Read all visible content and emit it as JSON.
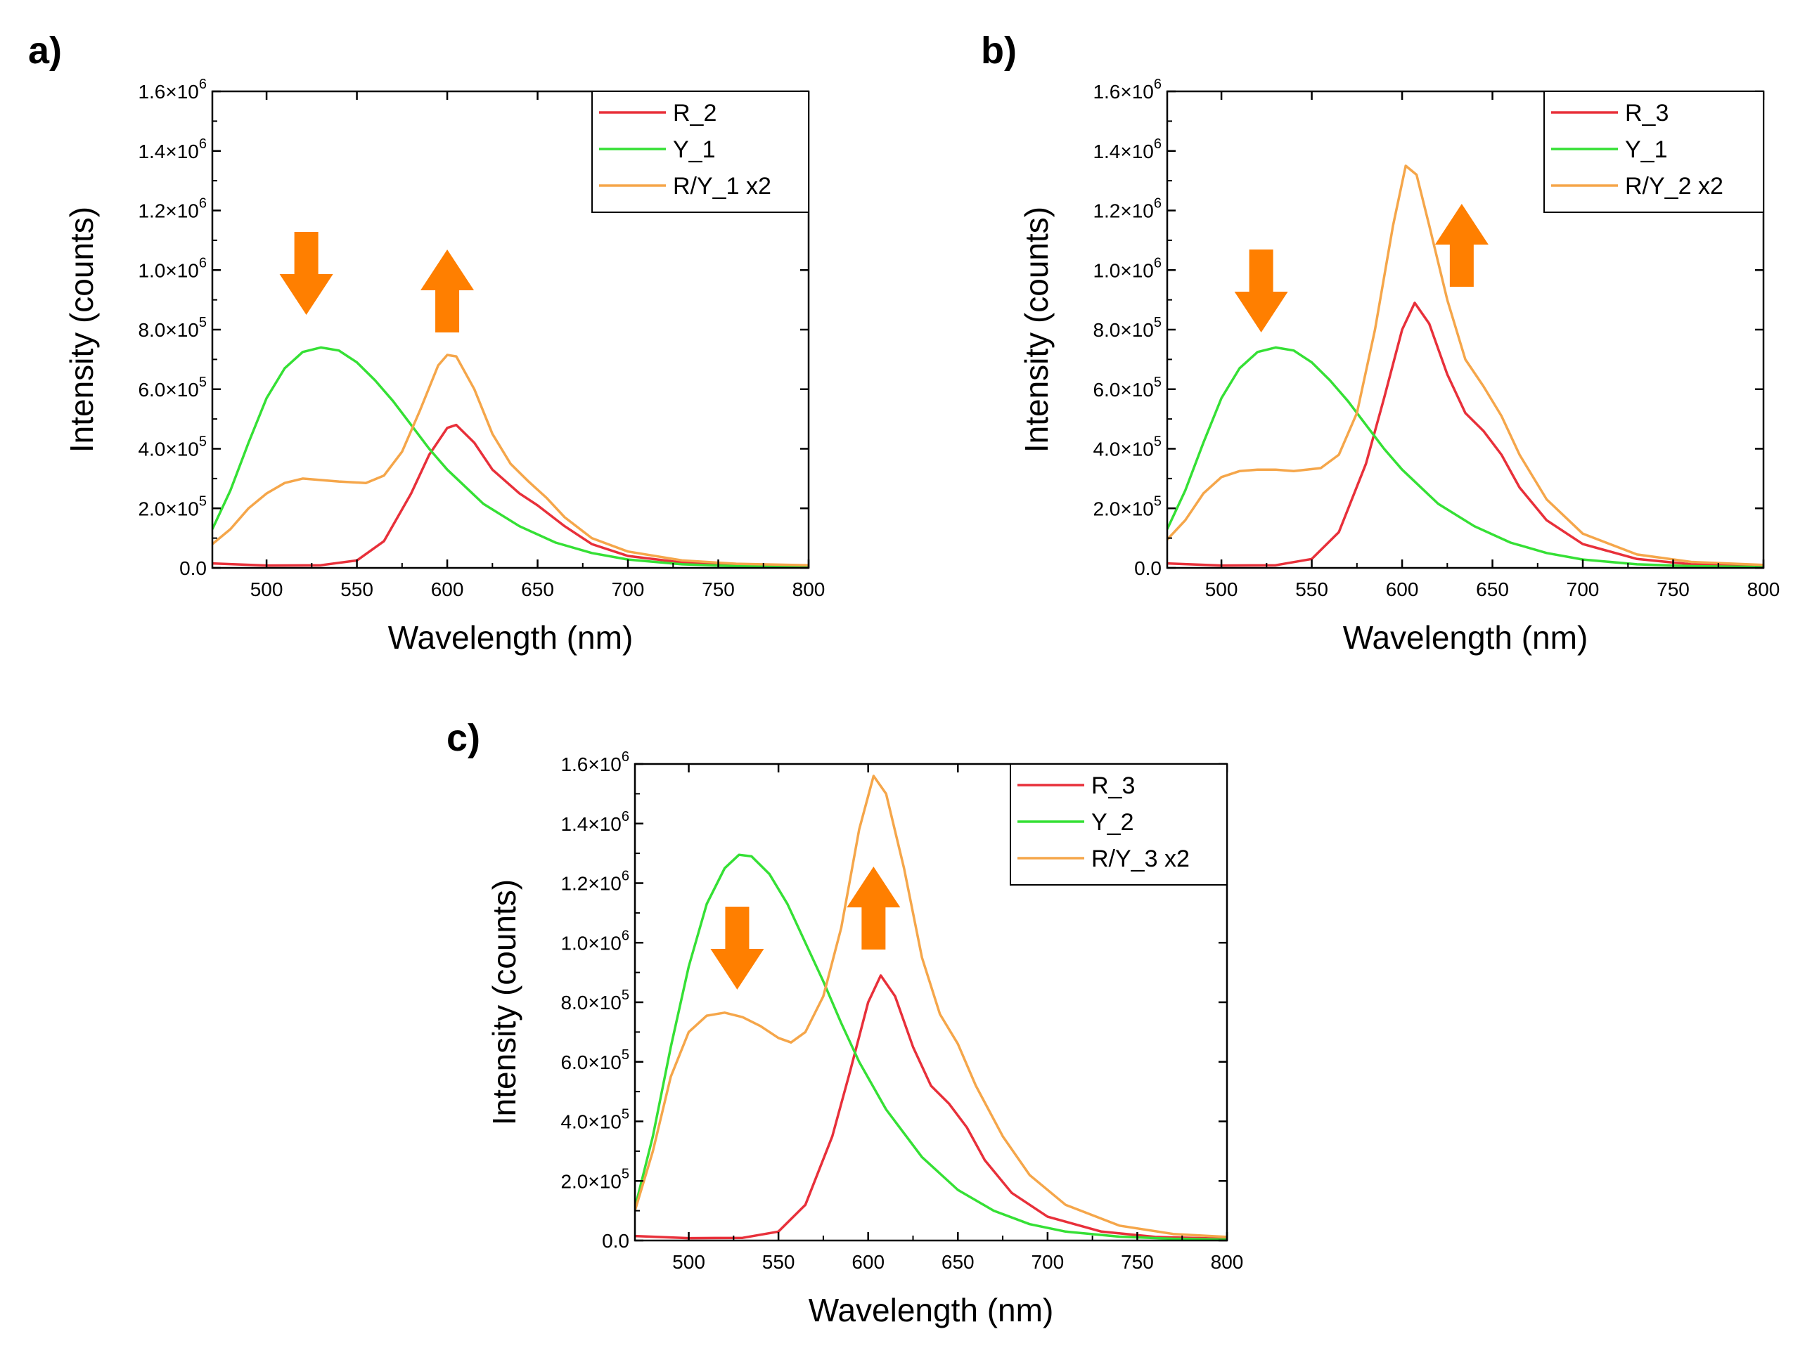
{
  "figure": {
    "panels": [
      {
        "label": "a)",
        "xlabel": "Wavelength (nm)",
        "ylabel": "Intensity (counts)",
        "xticks": [
          "500",
          "550",
          "600",
          "650",
          "700",
          "750",
          "800"
        ],
        "yticks": [
          {
            "mantissa": "0.0",
            "exp": ""
          },
          {
            "mantissa": "2.0×10",
            "exp": "5"
          },
          {
            "mantissa": "4.0×10",
            "exp": "5"
          },
          {
            "mantissa": "6.0×10",
            "exp": "5"
          },
          {
            "mantissa": "8.0×10",
            "exp": "5"
          },
          {
            "mantissa": "1.0×10",
            "exp": "6"
          },
          {
            "mantissa": "1.2×10",
            "exp": "6"
          },
          {
            "mantissa": "1.4×10",
            "exp": "6"
          },
          {
            "mantissa": "1.6×10",
            "exp": "6"
          }
        ],
        "legend": [
          "R_2",
          "Y_1",
          "R/Y_1 x2"
        ]
      },
      {
        "label": "b)",
        "xlabel": "Wavelength (nm)",
        "ylabel": "Intensity (counts)",
        "xticks": [
          "500",
          "550",
          "600",
          "650",
          "700",
          "750",
          "800"
        ],
        "yticks": [
          {
            "mantissa": "0.0",
            "exp": ""
          },
          {
            "mantissa": "2.0×10",
            "exp": "5"
          },
          {
            "mantissa": "4.0×10",
            "exp": "5"
          },
          {
            "mantissa": "6.0×10",
            "exp": "5"
          },
          {
            "mantissa": "8.0×10",
            "exp": "5"
          },
          {
            "mantissa": "1.0×10",
            "exp": "6"
          },
          {
            "mantissa": "1.2×10",
            "exp": "6"
          },
          {
            "mantissa": "1.4×10",
            "exp": "6"
          },
          {
            "mantissa": "1.6×10",
            "exp": "6"
          }
        ],
        "legend": [
          "R_3",
          "Y_1",
          "R/Y_2 x2"
        ]
      },
      {
        "label": "c)",
        "xlabel": "Wavelength (nm)",
        "ylabel": "Intensity (counts)",
        "xticks": [
          "500",
          "550",
          "600",
          "650",
          "700",
          "750",
          "800"
        ],
        "yticks": [
          {
            "mantissa": "0.0",
            "exp": ""
          },
          {
            "mantissa": "2.0×10",
            "exp": "5"
          },
          {
            "mantissa": "4.0×10",
            "exp": "5"
          },
          {
            "mantissa": "6.0×10",
            "exp": "5"
          },
          {
            "mantissa": "8.0×10",
            "exp": "5"
          },
          {
            "mantissa": "1.0×10",
            "exp": "6"
          },
          {
            "mantissa": "1.2×10",
            "exp": "6"
          },
          {
            "mantissa": "1.4×10",
            "exp": "6"
          },
          {
            "mantissa": "1.6×10",
            "exp": "6"
          }
        ],
        "legend": [
          "R_3",
          "Y_2",
          "R/Y_3 x2"
        ]
      }
    ]
  },
  "colors": {
    "red": "#e8303a",
    "green": "#35e035",
    "orange": "#f5a64a",
    "arrow": "#ff7f00"
  },
  "chart_data": [
    {
      "type": "line",
      "xlabel": "Wavelength (nm)",
      "ylabel": "Intensity (counts)",
      "xlim": [
        470,
        800
      ],
      "ylim": [
        0,
        1600000
      ],
      "grid": false,
      "legend_position": "top-right",
      "arrows": [
        {
          "x": 522,
          "direction": "down"
        },
        {
          "x": 600,
          "direction": "up"
        }
      ],
      "series": [
        {
          "name": "R_2",
          "color": "#e8303a",
          "points": [
            [
              470,
              15000
            ],
            [
              500,
              8000
            ],
            [
              530,
              9000
            ],
            [
              550,
              25000
            ],
            [
              565,
              90000
            ],
            [
              580,
              250000
            ],
            [
              590,
              380000
            ],
            [
              600,
              470000
            ],
            [
              605,
              480000
            ],
            [
              615,
              420000
            ],
            [
              625,
              330000
            ],
            [
              640,
              250000
            ],
            [
              650,
              210000
            ],
            [
              665,
              140000
            ],
            [
              680,
              80000
            ],
            [
              700,
              40000
            ],
            [
              730,
              18000
            ],
            [
              760,
              10000
            ],
            [
              800,
              6000
            ]
          ]
        },
        {
          "name": "Y_1",
          "color": "#35e035",
          "points": [
            [
              470,
              130000
            ],
            [
              480,
              260000
            ],
            [
              490,
              420000
            ],
            [
              500,
              570000
            ],
            [
              510,
              670000
            ],
            [
              520,
              725000
            ],
            [
              530,
              740000
            ],
            [
              540,
              730000
            ],
            [
              550,
              690000
            ],
            [
              560,
              630000
            ],
            [
              570,
              560000
            ],
            [
              580,
              480000
            ],
            [
              590,
              400000
            ],
            [
              600,
              330000
            ],
            [
              620,
              215000
            ],
            [
              640,
              140000
            ],
            [
              660,
              85000
            ],
            [
              680,
              50000
            ],
            [
              700,
              28000
            ],
            [
              730,
              12000
            ],
            [
              760,
              6000
            ],
            [
              800,
              3000
            ]
          ]
        },
        {
          "name": "R/Y_1 x2",
          "color": "#f5a64a",
          "points": [
            [
              470,
              80000
            ],
            [
              480,
              130000
            ],
            [
              490,
              200000
            ],
            [
              500,
              250000
            ],
            [
              510,
              285000
            ],
            [
              520,
              300000
            ],
            [
              530,
              295000
            ],
            [
              540,
              290000
            ],
            [
              555,
              285000
            ],
            [
              565,
              310000
            ],
            [
              575,
              390000
            ],
            [
              585,
              530000
            ],
            [
              595,
              680000
            ],
            [
              600,
              715000
            ],
            [
              605,
              710000
            ],
            [
              615,
              600000
            ],
            [
              625,
              450000
            ],
            [
              635,
              350000
            ],
            [
              645,
              290000
            ],
            [
              655,
              235000
            ],
            [
              665,
              170000
            ],
            [
              680,
              100000
            ],
            [
              700,
              55000
            ],
            [
              730,
              25000
            ],
            [
              760,
              14000
            ],
            [
              800,
              9000
            ]
          ]
        }
      ]
    },
    {
      "type": "line",
      "xlabel": "Wavelength (nm)",
      "ylabel": "Intensity (counts)",
      "xlim": [
        470,
        800
      ],
      "ylim": [
        0,
        1600000
      ],
      "grid": false,
      "legend_position": "top-right",
      "arrows": [
        {
          "x": 522,
          "direction": "down"
        },
        {
          "x": 633,
          "direction": "up"
        }
      ],
      "series": [
        {
          "name": "R_3",
          "color": "#e8303a",
          "points": [
            [
              470,
              15000
            ],
            [
              500,
              8000
            ],
            [
              530,
              9000
            ],
            [
              550,
              30000
            ],
            [
              565,
              120000
            ],
            [
              580,
              350000
            ],
            [
              590,
              570000
            ],
            [
              600,
              800000
            ],
            [
              607,
              890000
            ],
            [
              615,
              820000
            ],
            [
              625,
              650000
            ],
            [
              635,
              520000
            ],
            [
              645,
              460000
            ],
            [
              655,
              380000
            ],
            [
              665,
              270000
            ],
            [
              680,
              160000
            ],
            [
              700,
              80000
            ],
            [
              730,
              30000
            ],
            [
              760,
              12000
            ],
            [
              800,
              6000
            ]
          ]
        },
        {
          "name": "Y_1",
          "color": "#35e035",
          "points": [
            [
              470,
              130000
            ],
            [
              480,
              260000
            ],
            [
              490,
              420000
            ],
            [
              500,
              570000
            ],
            [
              510,
              670000
            ],
            [
              520,
              725000
            ],
            [
              530,
              740000
            ],
            [
              540,
              730000
            ],
            [
              550,
              690000
            ],
            [
              560,
              630000
            ],
            [
              570,
              560000
            ],
            [
              580,
              480000
            ],
            [
              590,
              400000
            ],
            [
              600,
              330000
            ],
            [
              620,
              215000
            ],
            [
              640,
              140000
            ],
            [
              660,
              85000
            ],
            [
              680,
              50000
            ],
            [
              700,
              28000
            ],
            [
              730,
              12000
            ],
            [
              760,
              6000
            ],
            [
              800,
              3000
            ]
          ]
        },
        {
          "name": "R/Y_2 x2",
          "color": "#f5a64a",
          "points": [
            [
              470,
              95000
            ],
            [
              480,
              160000
            ],
            [
              490,
              250000
            ],
            [
              500,
              305000
            ],
            [
              510,
              325000
            ],
            [
              520,
              330000
            ],
            [
              530,
              330000
            ],
            [
              540,
              325000
            ],
            [
              555,
              335000
            ],
            [
              565,
              380000
            ],
            [
              575,
              520000
            ],
            [
              585,
              800000
            ],
            [
              595,
              1150000
            ],
            [
              602,
              1350000
            ],
            [
              608,
              1320000
            ],
            [
              615,
              1150000
            ],
            [
              625,
              900000
            ],
            [
              635,
              700000
            ],
            [
              645,
              610000
            ],
            [
              655,
              510000
            ],
            [
              665,
              380000
            ],
            [
              680,
              230000
            ],
            [
              700,
              115000
            ],
            [
              730,
              45000
            ],
            [
              760,
              20000
            ],
            [
              800,
              10000
            ]
          ]
        }
      ]
    },
    {
      "type": "line",
      "xlabel": "Wavelength (nm)",
      "ylabel": "Intensity (counts)",
      "xlim": [
        470,
        800
      ],
      "ylim": [
        0,
        1600000
      ],
      "grid": false,
      "legend_position": "top-right",
      "arrows": [
        {
          "x": 527,
          "direction": "down"
        },
        {
          "x": 603,
          "direction": "up"
        }
      ],
      "series": [
        {
          "name": "R_3",
          "color": "#e8303a",
          "points": [
            [
              470,
              15000
            ],
            [
              500,
              8000
            ],
            [
              530,
              9000
            ],
            [
              550,
              30000
            ],
            [
              565,
              120000
            ],
            [
              580,
              350000
            ],
            [
              590,
              570000
            ],
            [
              600,
              800000
            ],
            [
              607,
              890000
            ],
            [
              615,
              820000
            ],
            [
              625,
              650000
            ],
            [
              635,
              520000
            ],
            [
              645,
              460000
            ],
            [
              655,
              380000
            ],
            [
              665,
              270000
            ],
            [
              680,
              160000
            ],
            [
              700,
              80000
            ],
            [
              730,
              30000
            ],
            [
              760,
              12000
            ],
            [
              800,
              6000
            ]
          ]
        },
        {
          "name": "Y_2",
          "color": "#35e035",
          "points": [
            [
              470,
              110000
            ],
            [
              480,
              350000
            ],
            [
              490,
              650000
            ],
            [
              500,
              920000
            ],
            [
              510,
              1130000
            ],
            [
              520,
              1250000
            ],
            [
              528,
              1295000
            ],
            [
              535,
              1290000
            ],
            [
              545,
              1230000
            ],
            [
              555,
              1130000
            ],
            [
              565,
              1000000
            ],
            [
              575,
              870000
            ],
            [
              585,
              730000
            ],
            [
              595,
              600000
            ],
            [
              610,
              440000
            ],
            [
              630,
              280000
            ],
            [
              650,
              170000
            ],
            [
              670,
              100000
            ],
            [
              690,
              55000
            ],
            [
              710,
              30000
            ],
            [
              740,
              13000
            ],
            [
              770,
              6000
            ],
            [
              800,
              3000
            ]
          ]
        },
        {
          "name": "R/Y_3 x2",
          "color": "#f5a64a",
          "points": [
            [
              470,
              100000
            ],
            [
              480,
              300000
            ],
            [
              490,
              550000
            ],
            [
              500,
              700000
            ],
            [
              510,
              755000
            ],
            [
              520,
              765000
            ],
            [
              530,
              750000
            ],
            [
              540,
              720000
            ],
            [
              550,
              680000
            ],
            [
              557,
              665000
            ],
            [
              565,
              700000
            ],
            [
              575,
              820000
            ],
            [
              585,
              1050000
            ],
            [
              595,
              1380000
            ],
            [
              603,
              1560000
            ],
            [
              610,
              1500000
            ],
            [
              620,
              1250000
            ],
            [
              630,
              950000
            ],
            [
              640,
              760000
            ],
            [
              650,
              660000
            ],
            [
              660,
              520000
            ],
            [
              675,
              350000
            ],
            [
              690,
              220000
            ],
            [
              710,
              120000
            ],
            [
              740,
              50000
            ],
            [
              770,
              22000
            ],
            [
              800,
              12000
            ]
          ]
        }
      ]
    }
  ]
}
